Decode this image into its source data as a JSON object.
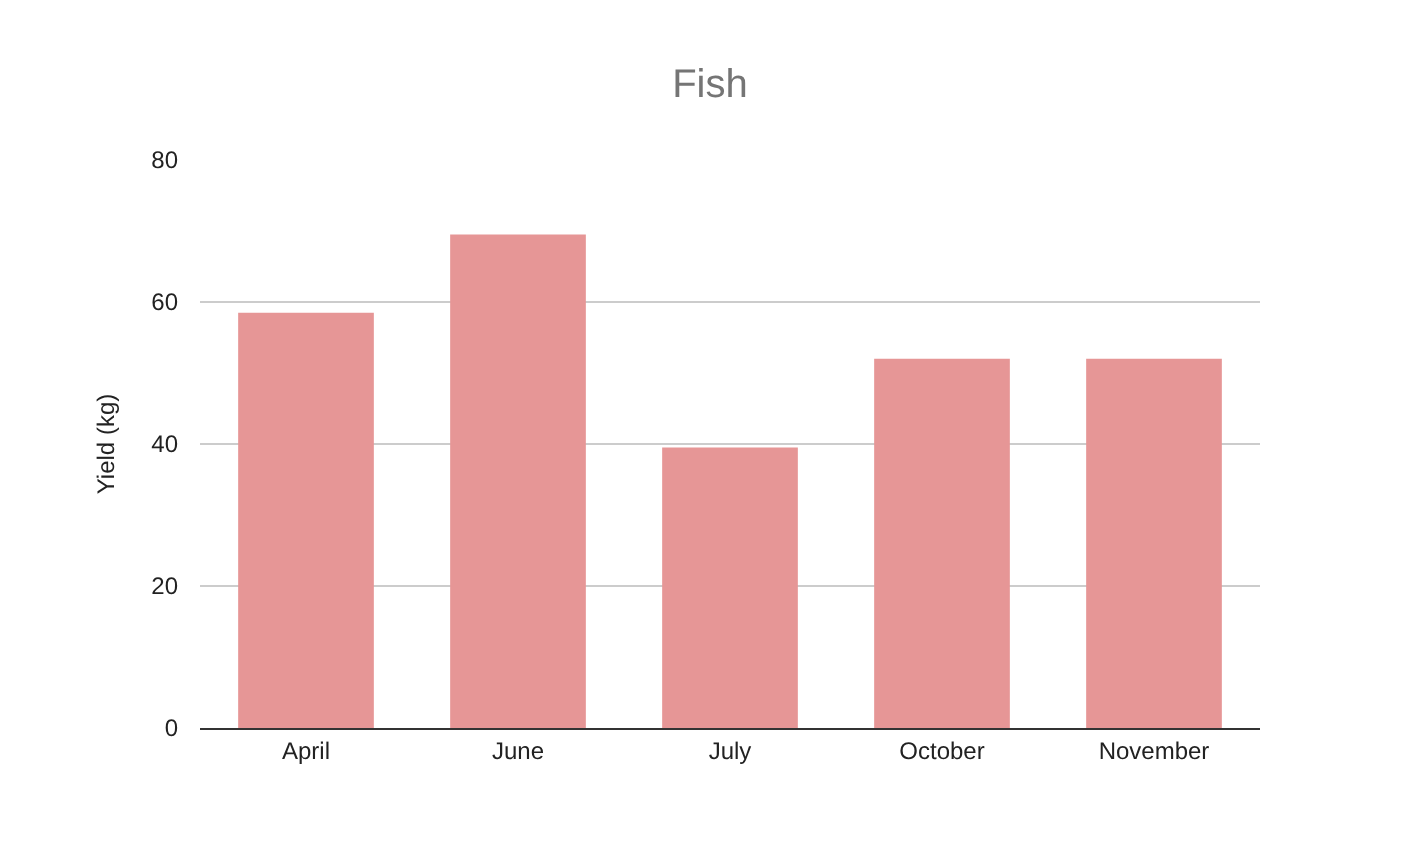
{
  "chart_data": {
    "type": "bar",
    "title": "Fish",
    "ylabel": "Yield (kg)",
    "categories": [
      "April",
      "June",
      "July",
      "October",
      "November"
    ],
    "values": [
      58.5,
      69.5,
      39.5,
      52,
      52
    ],
    "color": "#e69696",
    "ylim": [
      0,
      80
    ],
    "yticks": [
      0,
      20,
      40,
      60,
      80
    ],
    "grid": "y",
    "legend": false
  }
}
